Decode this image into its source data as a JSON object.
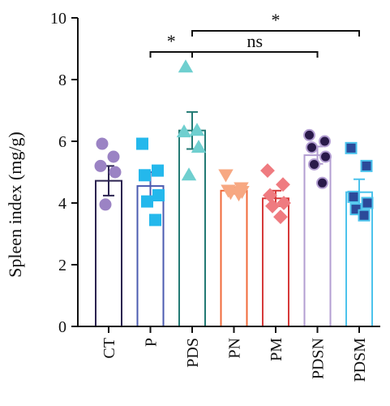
{
  "chart_data": {
    "type": "bar",
    "title": "",
    "xlabel": "",
    "ylabel": "Spleen index (mg/g)",
    "ylim": [
      0,
      10
    ],
    "yticks": [
      0,
      2,
      4,
      6,
      8,
      10
    ],
    "grid": false,
    "legend": "none",
    "categories": [
      "CT",
      "P",
      "PDS",
      "PN",
      "PM",
      "PDSN",
      "PDSM"
    ],
    "values": [
      4.72,
      4.55,
      6.35,
      4.4,
      4.15,
      5.55,
      4.35
    ],
    "errors": [
      0.48,
      0.45,
      0.6,
      0.1,
      0.25,
      0.28,
      0.42
    ],
    "points": [
      [
        5.92,
        5.5,
        5.2,
        5.0,
        3.95
      ],
      [
        5.92,
        5.05,
        4.9,
        4.25,
        4.05,
        3.45
      ],
      [
        8.4,
        6.35,
        6.3,
        5.8,
        4.9
      ],
      [
        4.92,
        4.5,
        4.42,
        4.38,
        4.35,
        4.3
      ],
      [
        5.05,
        4.6,
        4.25,
        4.0,
        3.9,
        3.55
      ],
      [
        6.2,
        6.0,
        5.8,
        5.5,
        5.25,
        4.65
      ],
      [
        5.78,
        5.2,
        4.2,
        4.0,
        3.8,
        3.6
      ]
    ],
    "markers": [
      "circle",
      "square",
      "triangle-up",
      "triangle-down",
      "diamond",
      "circle",
      "square"
    ],
    "colors": {
      "CT": {
        "bar": "#2b2350",
        "point": "#9b83c4",
        "point_stroke": "#9b83c4"
      },
      "P": {
        "bar": "#4b5bb0",
        "point": "#24b8ec",
        "point_stroke": "#24b8ec"
      },
      "PDS": {
        "bar": "#237a74",
        "point": "#6fcfcf",
        "point_stroke": "#6fcfcf"
      },
      "PN": {
        "bar": "#f06a3a",
        "point": "#f7a882",
        "point_stroke": "#f7a882"
      },
      "PM": {
        "bar": "#d63a3a",
        "point": "#ef7b80",
        "point_stroke": "#ef7b80"
      },
      "PDSN": {
        "bar": "#b39ed2",
        "point": "#2a1a4a",
        "point_stroke": "#b39ed2"
      },
      "PDSM": {
        "bar": "#4cc3ec",
        "point": "#2b4a9a",
        "point_stroke": "#4cc3ec"
      }
    },
    "significance": [
      {
        "from": "P",
        "to": "PDS",
        "label": "*"
      },
      {
        "from": "PDS",
        "to": "PDSN",
        "label": "ns"
      },
      {
        "from": "PDS",
        "to": "PDSM",
        "label": "*"
      }
    ]
  }
}
